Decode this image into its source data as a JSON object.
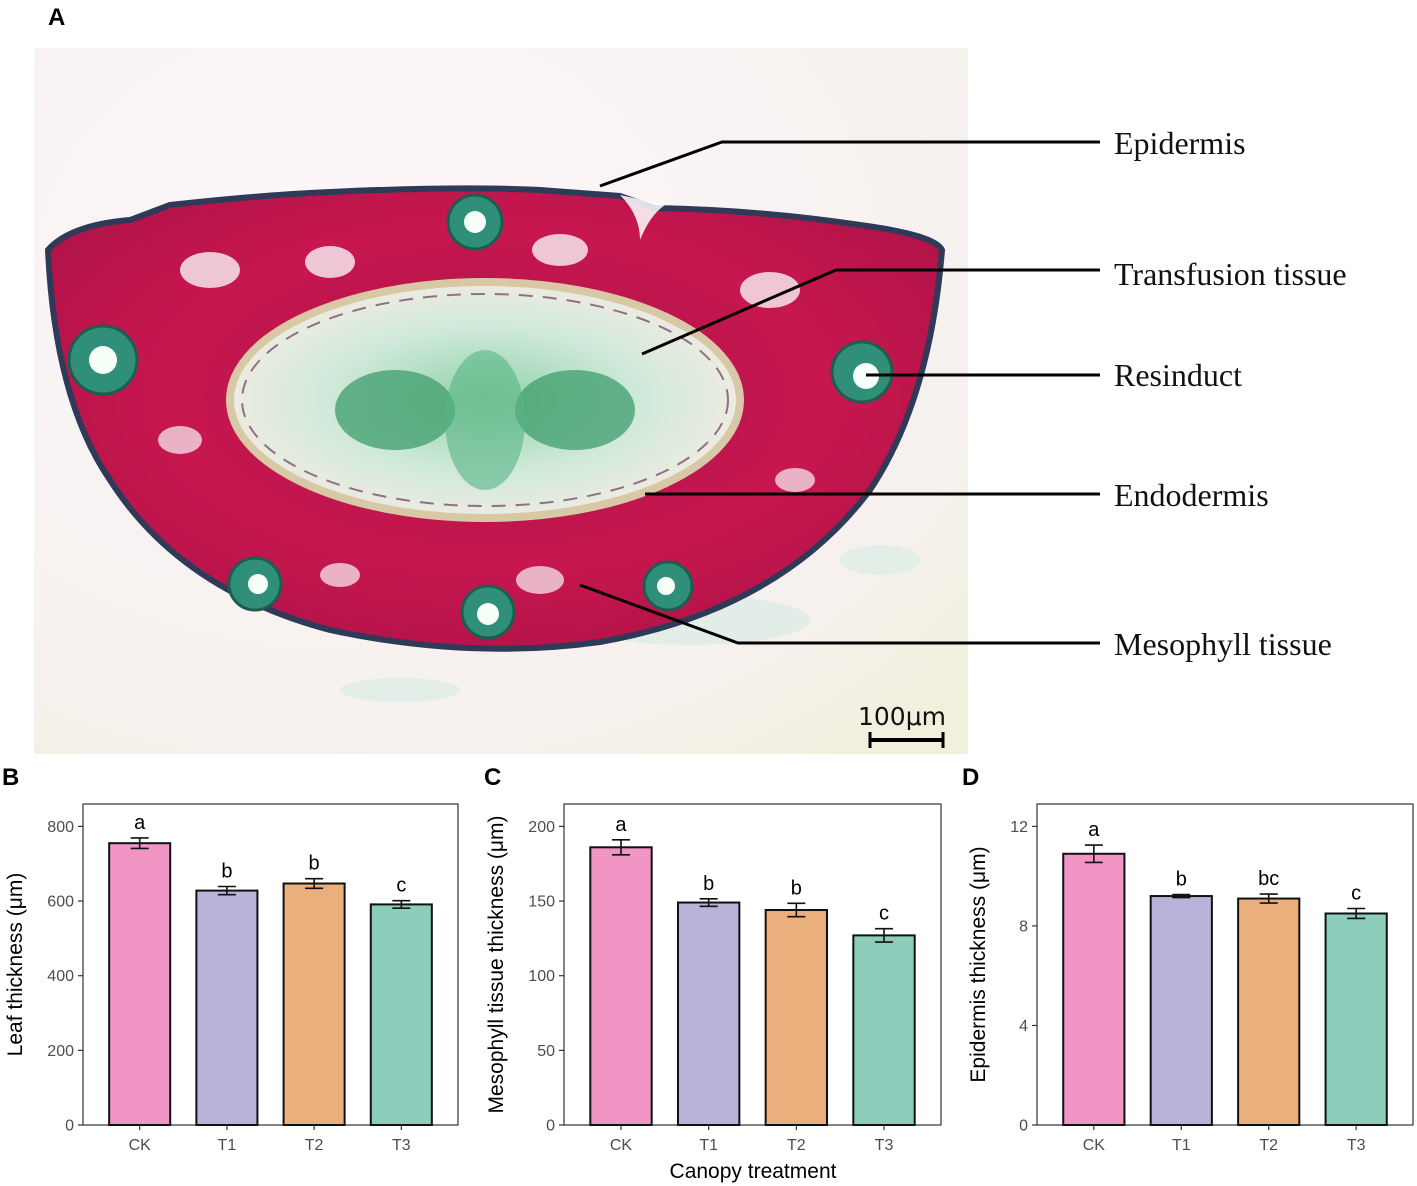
{
  "panel_a": {
    "letter": "A",
    "callouts": [
      "Epidermis",
      "Transfusion tissue",
      "Resinduct",
      "Endodermis",
      "Mesophyll tissue"
    ],
    "scale_bar_label": "100μm"
  },
  "shared_xlabel": "Canopy treatment",
  "colors": {
    "CK": "#f195c5",
    "T1": "#b8b3d8",
    "T2": "#ebae7d",
    "T3": "#8ccdbb"
  },
  "chart_data": [
    {
      "panel": "B",
      "type": "bar",
      "categories": [
        "CK",
        "T1",
        "T2",
        "T3"
      ],
      "values": [
        755,
        628,
        647,
        591
      ],
      "errors": [
        14,
        11,
        13,
        10
      ],
      "letters": [
        "a",
        "b",
        "b",
        "c"
      ],
      "ylabel": "Leaf thickness (μm)",
      "ylim": [
        0,
        860
      ],
      "yticks": [
        0,
        200,
        400,
        600,
        800
      ]
    },
    {
      "panel": "C",
      "type": "bar",
      "categories": [
        "CK",
        "T1",
        "T2",
        "T3"
      ],
      "values": [
        186,
        149,
        144,
        127
      ],
      "errors": [
        5,
        2.5,
        4.5,
        4.5
      ],
      "letters": [
        "a",
        "b",
        "b",
        "c"
      ],
      "ylabel": "Mesophyll tissue thickness (μm)",
      "ylim": [
        0,
        215
      ],
      "yticks": [
        0,
        50,
        100,
        150,
        200
      ]
    },
    {
      "panel": "D",
      "type": "bar",
      "categories": [
        "CK",
        "T1",
        "T2",
        "T3"
      ],
      "values": [
        10.9,
        9.2,
        9.1,
        8.5
      ],
      "errors": [
        0.35,
        0.06,
        0.18,
        0.2
      ],
      "letters": [
        "a",
        "b",
        "bc",
        "c"
      ],
      "ylabel": "Epidermis thickness (μm)",
      "ylim": [
        0,
        12.9
      ],
      "yticks": [
        0,
        4,
        8,
        12
      ]
    }
  ]
}
